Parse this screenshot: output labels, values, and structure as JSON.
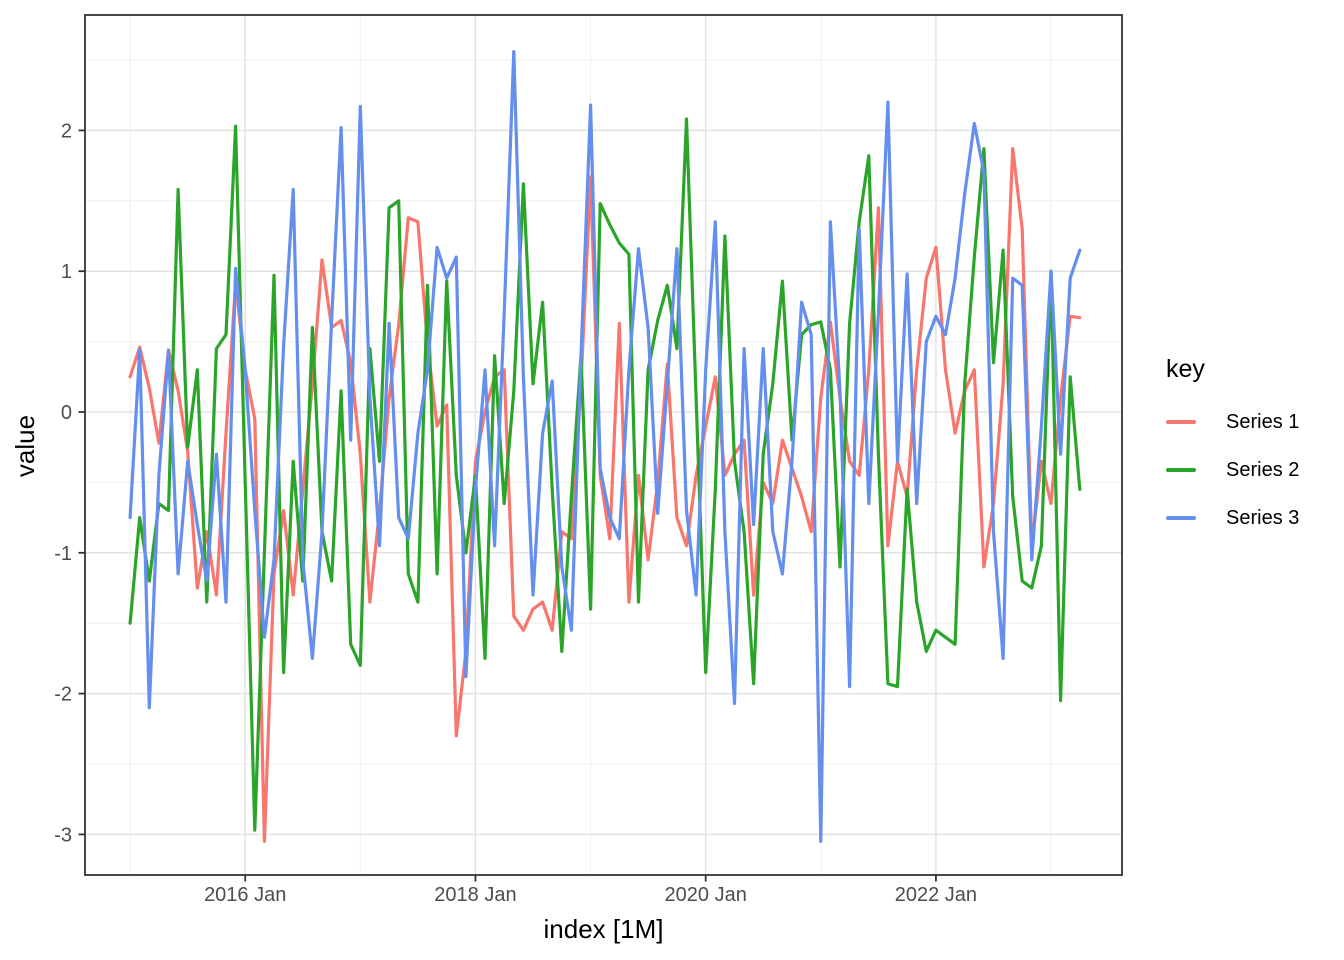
{
  "figure": {
    "background": "#ffffff"
  },
  "axes": {
    "xlabel": "index [1M]",
    "ylabel": "value",
    "tick_color": "#4d4d4d",
    "panel_border_color": "#333333",
    "grid_major_color": "#e3e3e3",
    "grid_minor_color": "#f0f0f0"
  },
  "legend": {
    "title": "key"
  },
  "chart_data": {
    "type": "line",
    "title": "",
    "xlabel": "index [1M]",
    "ylabel": "value",
    "x_unit": "1 month",
    "grid": "major+minor",
    "legend_title": "key",
    "legend_position": "right",
    "ylim": [
      -3.29,
      2.83
    ],
    "y_ticks": [
      2,
      1,
      0,
      -1,
      -2,
      -3
    ],
    "y_tick_labels": [
      "2",
      "1",
      "0",
      "-1",
      "-2",
      "-3"
    ],
    "y_minor_ticks": [
      2.5,
      1.5,
      0.5,
      -0.5,
      -1.5,
      -2.5
    ],
    "x_tick_labels": [
      "2016 Jan",
      "2018 Jan",
      "2020 Jan",
      "2022 Jan"
    ],
    "x_tick_month_index": [
      12,
      36,
      60,
      84
    ],
    "x_minor_month_index": [
      0,
      24,
      48,
      72,
      96
    ],
    "x": [
      "2015 Jan",
      "2015 Feb",
      "2015 Mar",
      "2015 Apr",
      "2015 May",
      "2015 Jun",
      "2015 Jul",
      "2015 Aug",
      "2015 Sep",
      "2015 Oct",
      "2015 Nov",
      "2015 Dec",
      "2016 Jan",
      "2016 Feb",
      "2016 Mar",
      "2016 Apr",
      "2016 May",
      "2016 Jun",
      "2016 Jul",
      "2016 Aug",
      "2016 Sep",
      "2016 Oct",
      "2016 Nov",
      "2016 Dec",
      "2017 Jan",
      "2017 Feb",
      "2017 Mar",
      "2017 Apr",
      "2017 May",
      "2017 Jun",
      "2017 Jul",
      "2017 Aug",
      "2017 Sep",
      "2017 Oct",
      "2017 Nov",
      "2017 Dec",
      "2018 Jan",
      "2018 Feb",
      "2018 Mar",
      "2018 Apr",
      "2018 May",
      "2018 Jun",
      "2018 Jul",
      "2018 Aug",
      "2018 Sep",
      "2018 Oct",
      "2018 Nov",
      "2018 Dec",
      "2019 Jan",
      "2019 Feb",
      "2019 Mar",
      "2019 Apr",
      "2019 May",
      "2019 Jun",
      "2019 Jul",
      "2019 Aug",
      "2019 Sep",
      "2019 Oct",
      "2019 Nov",
      "2019 Dec",
      "2020 Jan",
      "2020 Feb",
      "2020 Mar",
      "2020 Apr",
      "2020 May",
      "2020 Jun",
      "2020 Jul",
      "2020 Aug",
      "2020 Sep",
      "2020 Oct",
      "2020 Nov",
      "2020 Dec",
      "2021 Jan",
      "2021 Feb",
      "2021 Mar",
      "2021 Apr",
      "2021 May",
      "2021 Jun",
      "2021 Jul",
      "2021 Aug",
      "2021 Sep",
      "2021 Oct",
      "2021 Nov",
      "2021 Dec",
      "2022 Jan",
      "2022 Feb",
      "2022 Mar",
      "2022 Apr",
      "2022 May",
      "2022 Jun",
      "2022 Jul",
      "2022 Aug",
      "2022 Sep",
      "2022 Oct",
      "2022 Nov",
      "2022 Dec",
      "2023 Jan",
      "2023 Feb",
      "2023 Mar",
      "2023 Apr"
    ],
    "series": [
      {
        "name": "Series 1",
        "color": "#f8766d",
        "values": [
          0.25,
          0.46,
          0.17,
          -0.22,
          0.44,
          0.15,
          -0.28,
          -1.25,
          -0.85,
          -1.3,
          -0.15,
          0.92,
          0.3,
          -0.05,
          -3.05,
          -1.15,
          -0.7,
          -1.3,
          -0.55,
          0.2,
          1.08,
          0.6,
          0.65,
          0.35,
          -0.3,
          -1.35,
          -0.7,
          0.1,
          0.62,
          1.38,
          1.35,
          0.48,
          -0.1,
          0.05,
          -2.3,
          -1.7,
          -0.35,
          0.0,
          0.25,
          0.3,
          -1.45,
          -1.55,
          -1.4,
          -1.35,
          -1.55,
          -0.85,
          -0.9,
          0.2,
          1.67,
          -0.45,
          -0.9,
          0.63,
          -1.35,
          -0.45,
          -1.05,
          -0.5,
          0.34,
          -0.75,
          -0.95,
          -0.45,
          -0.1,
          0.25,
          -0.45,
          -0.3,
          -0.2,
          -1.3,
          -0.5,
          -0.65,
          -0.2,
          -0.4,
          -0.6,
          -0.85,
          0.1,
          0.64,
          0.1,
          -0.35,
          -0.45,
          0.3,
          1.45,
          -0.95,
          -0.35,
          -0.6,
          0.3,
          0.95,
          1.17,
          0.3,
          -0.15,
          0.15,
          0.3,
          -1.1,
          -0.65,
          0.2,
          1.87,
          1.3,
          -0.95,
          -0.35,
          -0.65,
          0.1,
          0.68,
          0.67
        ]
      },
      {
        "name": "Series 2",
        "color": "#2aa52a",
        "values": [
          -1.5,
          -0.75,
          -1.2,
          -0.65,
          -0.7,
          1.58,
          -0.25,
          0.3,
          -1.35,
          0.45,
          0.55,
          2.03,
          -0.5,
          -2.97,
          -1.0,
          0.97,
          -1.85,
          -0.35,
          -1.2,
          0.6,
          -0.85,
          -1.2,
          0.15,
          -1.65,
          -1.8,
          0.45,
          -0.35,
          1.45,
          1.5,
          -1.15,
          -1.35,
          0.9,
          -1.15,
          0.93,
          -0.45,
          -1.0,
          -0.45,
          -1.75,
          0.4,
          -0.65,
          0.15,
          1.62,
          0.2,
          0.78,
          -0.55,
          -1.7,
          -0.6,
          0.4,
          -1.4,
          1.48,
          1.33,
          1.2,
          1.12,
          -1.35,
          0.3,
          0.65,
          0.9,
          0.45,
          2.08,
          0.1,
          -1.85,
          -0.55,
          1.25,
          -0.35,
          -0.85,
          -1.93,
          -0.3,
          0.2,
          0.93,
          -0.2,
          0.55,
          0.62,
          0.64,
          0.3,
          -1.1,
          0.63,
          1.35,
          1.82,
          -0.3,
          -1.93,
          -1.95,
          -0.55,
          -1.35,
          -1.7,
          -1.55,
          -1.6,
          -1.65,
          0.2,
          1.1,
          1.87,
          0.35,
          1.15,
          -0.6,
          -1.2,
          -1.25,
          -0.95,
          1.0,
          -2.05,
          0.25,
          -0.55
        ]
      },
      {
        "name": "Series 3",
        "color": "#648fee",
        "values": [
          -0.75,
          0.44,
          -2.1,
          -0.45,
          0.44,
          -1.15,
          -0.35,
          -0.8,
          -1.2,
          -0.3,
          -1.35,
          1.02,
          0.3,
          -0.7,
          -1.6,
          -1.05,
          0.47,
          1.58,
          -1.05,
          -1.75,
          -0.85,
          0.65,
          2.02,
          -0.2,
          2.17,
          0.1,
          -0.95,
          0.63,
          -0.75,
          -0.9,
          -0.15,
          0.3,
          1.17,
          0.95,
          1.1,
          -1.88,
          -0.55,
          0.3,
          -0.95,
          0.7,
          2.56,
          0.25,
          -1.3,
          -0.15,
          0.22,
          -1.1,
          -1.55,
          0.4,
          2.18,
          -0.4,
          -0.75,
          -0.9,
          0.3,
          1.16,
          0.6,
          -0.72,
          0.2,
          1.16,
          -0.7,
          -1.3,
          0.3,
          1.35,
          -0.85,
          -2.07,
          0.45,
          -0.8,
          0.45,
          -0.85,
          -1.15,
          -0.35,
          0.78,
          0.55,
          -3.05,
          1.35,
          0.15,
          -1.95,
          1.3,
          -0.65,
          0.7,
          2.2,
          -0.35,
          0.98,
          -0.65,
          0.5,
          0.68,
          0.55,
          0.95,
          1.55,
          2.05,
          1.7,
          -0.85,
          -1.75,
          0.95,
          0.9,
          -1.05,
          -0.1,
          1.0,
          -0.3,
          0.95,
          1.15
        ]
      }
    ]
  }
}
